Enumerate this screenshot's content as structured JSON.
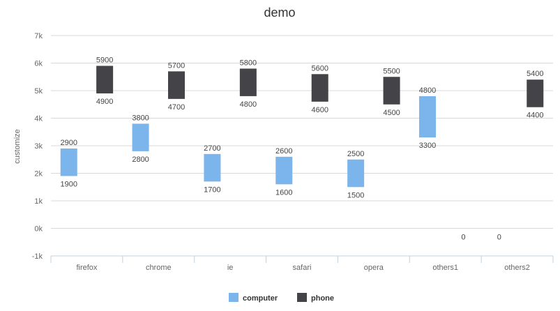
{
  "chart_data": {
    "type": "columnrange",
    "title": "demo",
    "ylabel": "customize",
    "ylim": [
      -1000,
      7000
    ],
    "yticks": [
      -1000,
      0,
      1000,
      2000,
      3000,
      4000,
      5000,
      6000,
      7000
    ],
    "ytick_labels": [
      "-1k",
      "0k",
      "1k",
      "2k",
      "3k",
      "4k",
      "5k",
      "6k",
      "7k"
    ],
    "categories": [
      "firefox",
      "chrome",
      "ie",
      "safari",
      "opera",
      "others1",
      "others2"
    ],
    "grid": true,
    "legend_position": "bottom-center",
    "series": [
      {
        "name": "computer",
        "color": "#7cb5ec",
        "ranges": [
          [
            1900,
            2900
          ],
          [
            2800,
            3800
          ],
          [
            1700,
            2700
          ],
          [
            1600,
            2600
          ],
          [
            1500,
            2500
          ],
          [
            3300,
            4800
          ],
          [
            0,
            0
          ]
        ]
      },
      {
        "name": "phone",
        "color": "#434348",
        "ranges": [
          [
            4900,
            5900
          ],
          [
            4700,
            5700
          ],
          [
            4800,
            5800
          ],
          [
            4600,
            5600
          ],
          [
            4500,
            5500
          ],
          [
            0,
            0
          ],
          [
            4400,
            5400
          ]
        ]
      }
    ]
  }
}
